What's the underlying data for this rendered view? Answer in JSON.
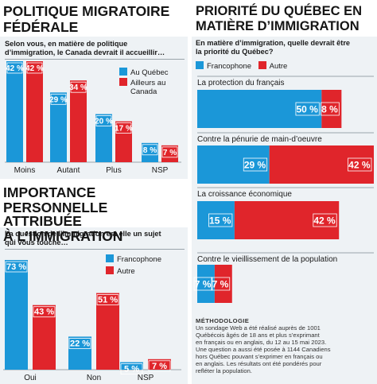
{
  "colors": {
    "blue": "#1b97d8",
    "red": "#e0252b",
    "panel": "#eef2f5"
  },
  "panel1": {
    "title1": "POLITIQUE MIGRATOIRE",
    "title2": "FÉDÉRALE",
    "question1": "Selon vous, en matière de politique",
    "question2": "d’immigration, le Canada devrait il accueillir…",
    "legend": [
      "Au Québec",
      "Ailleurs au",
      "Canada"
    ]
  },
  "panel2": {
    "title1": "IMPORTANCE",
    "title2": "PERSONNELLE ATTRIBUÉE",
    "title3": "À L’IMMIGRATION",
    "question1": "La question de l’immigration est elle un sujet",
    "question2": "qui vous touche…",
    "legend": [
      "Francophone",
      "Autre"
    ]
  },
  "panel3": {
    "title1": "PRIORITÉ DU QUÉBEC EN",
    "title2": "MATIÈRE D’IMMIGRATION",
    "question1": "En matière d’immigration, quelle devrait être",
    "question2": "la priorité du Québec?",
    "legend": [
      "Francophone",
      "Autre"
    ]
  },
  "methodology": {
    "title": "MÉTHODOLOGIE",
    "lines": [
      "Un sondage Web a été réalisé auprès de 1001",
      "Québécois âgés de 18 ans et plus s’exprimant",
      "en français ou en anglais, du 12 au 15 mai 2023.",
      "Une question a aussi été posée à 1144 Canadiens",
      "hors Québec pouvant s’exprimer en français ou",
      "en anglais. Les résultats ont été pondérés pour",
      "refléter la population."
    ]
  },
  "chart_data": [
    {
      "type": "bar",
      "title": "POLITIQUE MIGRATOIRE FÉDÉRALE",
      "categories": [
        "Moins",
        "Autant",
        "Plus",
        "NSP"
      ],
      "series": [
        {
          "name": "Au Québec",
          "values": [
            42,
            29,
            20,
            8
          ],
          "labels": [
            "42 %",
            "29 %",
            "20 %",
            "8 %"
          ]
        },
        {
          "name": "Ailleurs au Canada",
          "values": [
            42,
            34,
            17,
            7
          ],
          "labels": [
            "42 %",
            "34 %",
            "17 %",
            "7 %"
          ]
        }
      ],
      "ylim": [
        0,
        42
      ]
    },
    {
      "type": "bar",
      "title": "IMPORTANCE PERSONNELLE ATTRIBUÉE À L’IMMIGRATION",
      "categories": [
        "Oui",
        "Non",
        "NSP"
      ],
      "series": [
        {
          "name": "Francophone",
          "values": [
            73,
            22,
            5
          ],
          "labels": [
            "73 %",
            "22 %",
            "5 %"
          ]
        },
        {
          "name": "Autre",
          "values": [
            43,
            51,
            7
          ],
          "labels": [
            "43 %",
            "51 %",
            "7 %"
          ]
        }
      ],
      "ylim": [
        0,
        73
      ]
    },
    {
      "type": "bar",
      "title": "PRIORITÉ DU QUÉBEC EN MATIÈRE D’IMMIGRATION",
      "orientation": "horizontal-stacked",
      "categories": [
        "La protection du français",
        "Contre la pénurie de main-d’oeuvre",
        "La croissance économique",
        "Contre le vieillissement de la population"
      ],
      "series": [
        {
          "name": "Francophone",
          "values": [
            50,
            29,
            15,
            7
          ],
          "labels": [
            "50 %",
            "29 %",
            "15 %",
            "7 %"
          ]
        },
        {
          "name": "Autre",
          "values": [
            8,
            42,
            42,
            7
          ],
          "labels": [
            "8 %",
            "42 %",
            "42 %",
            "7 %"
          ]
        }
      ],
      "xlim": [
        0,
        71
      ]
    }
  ]
}
